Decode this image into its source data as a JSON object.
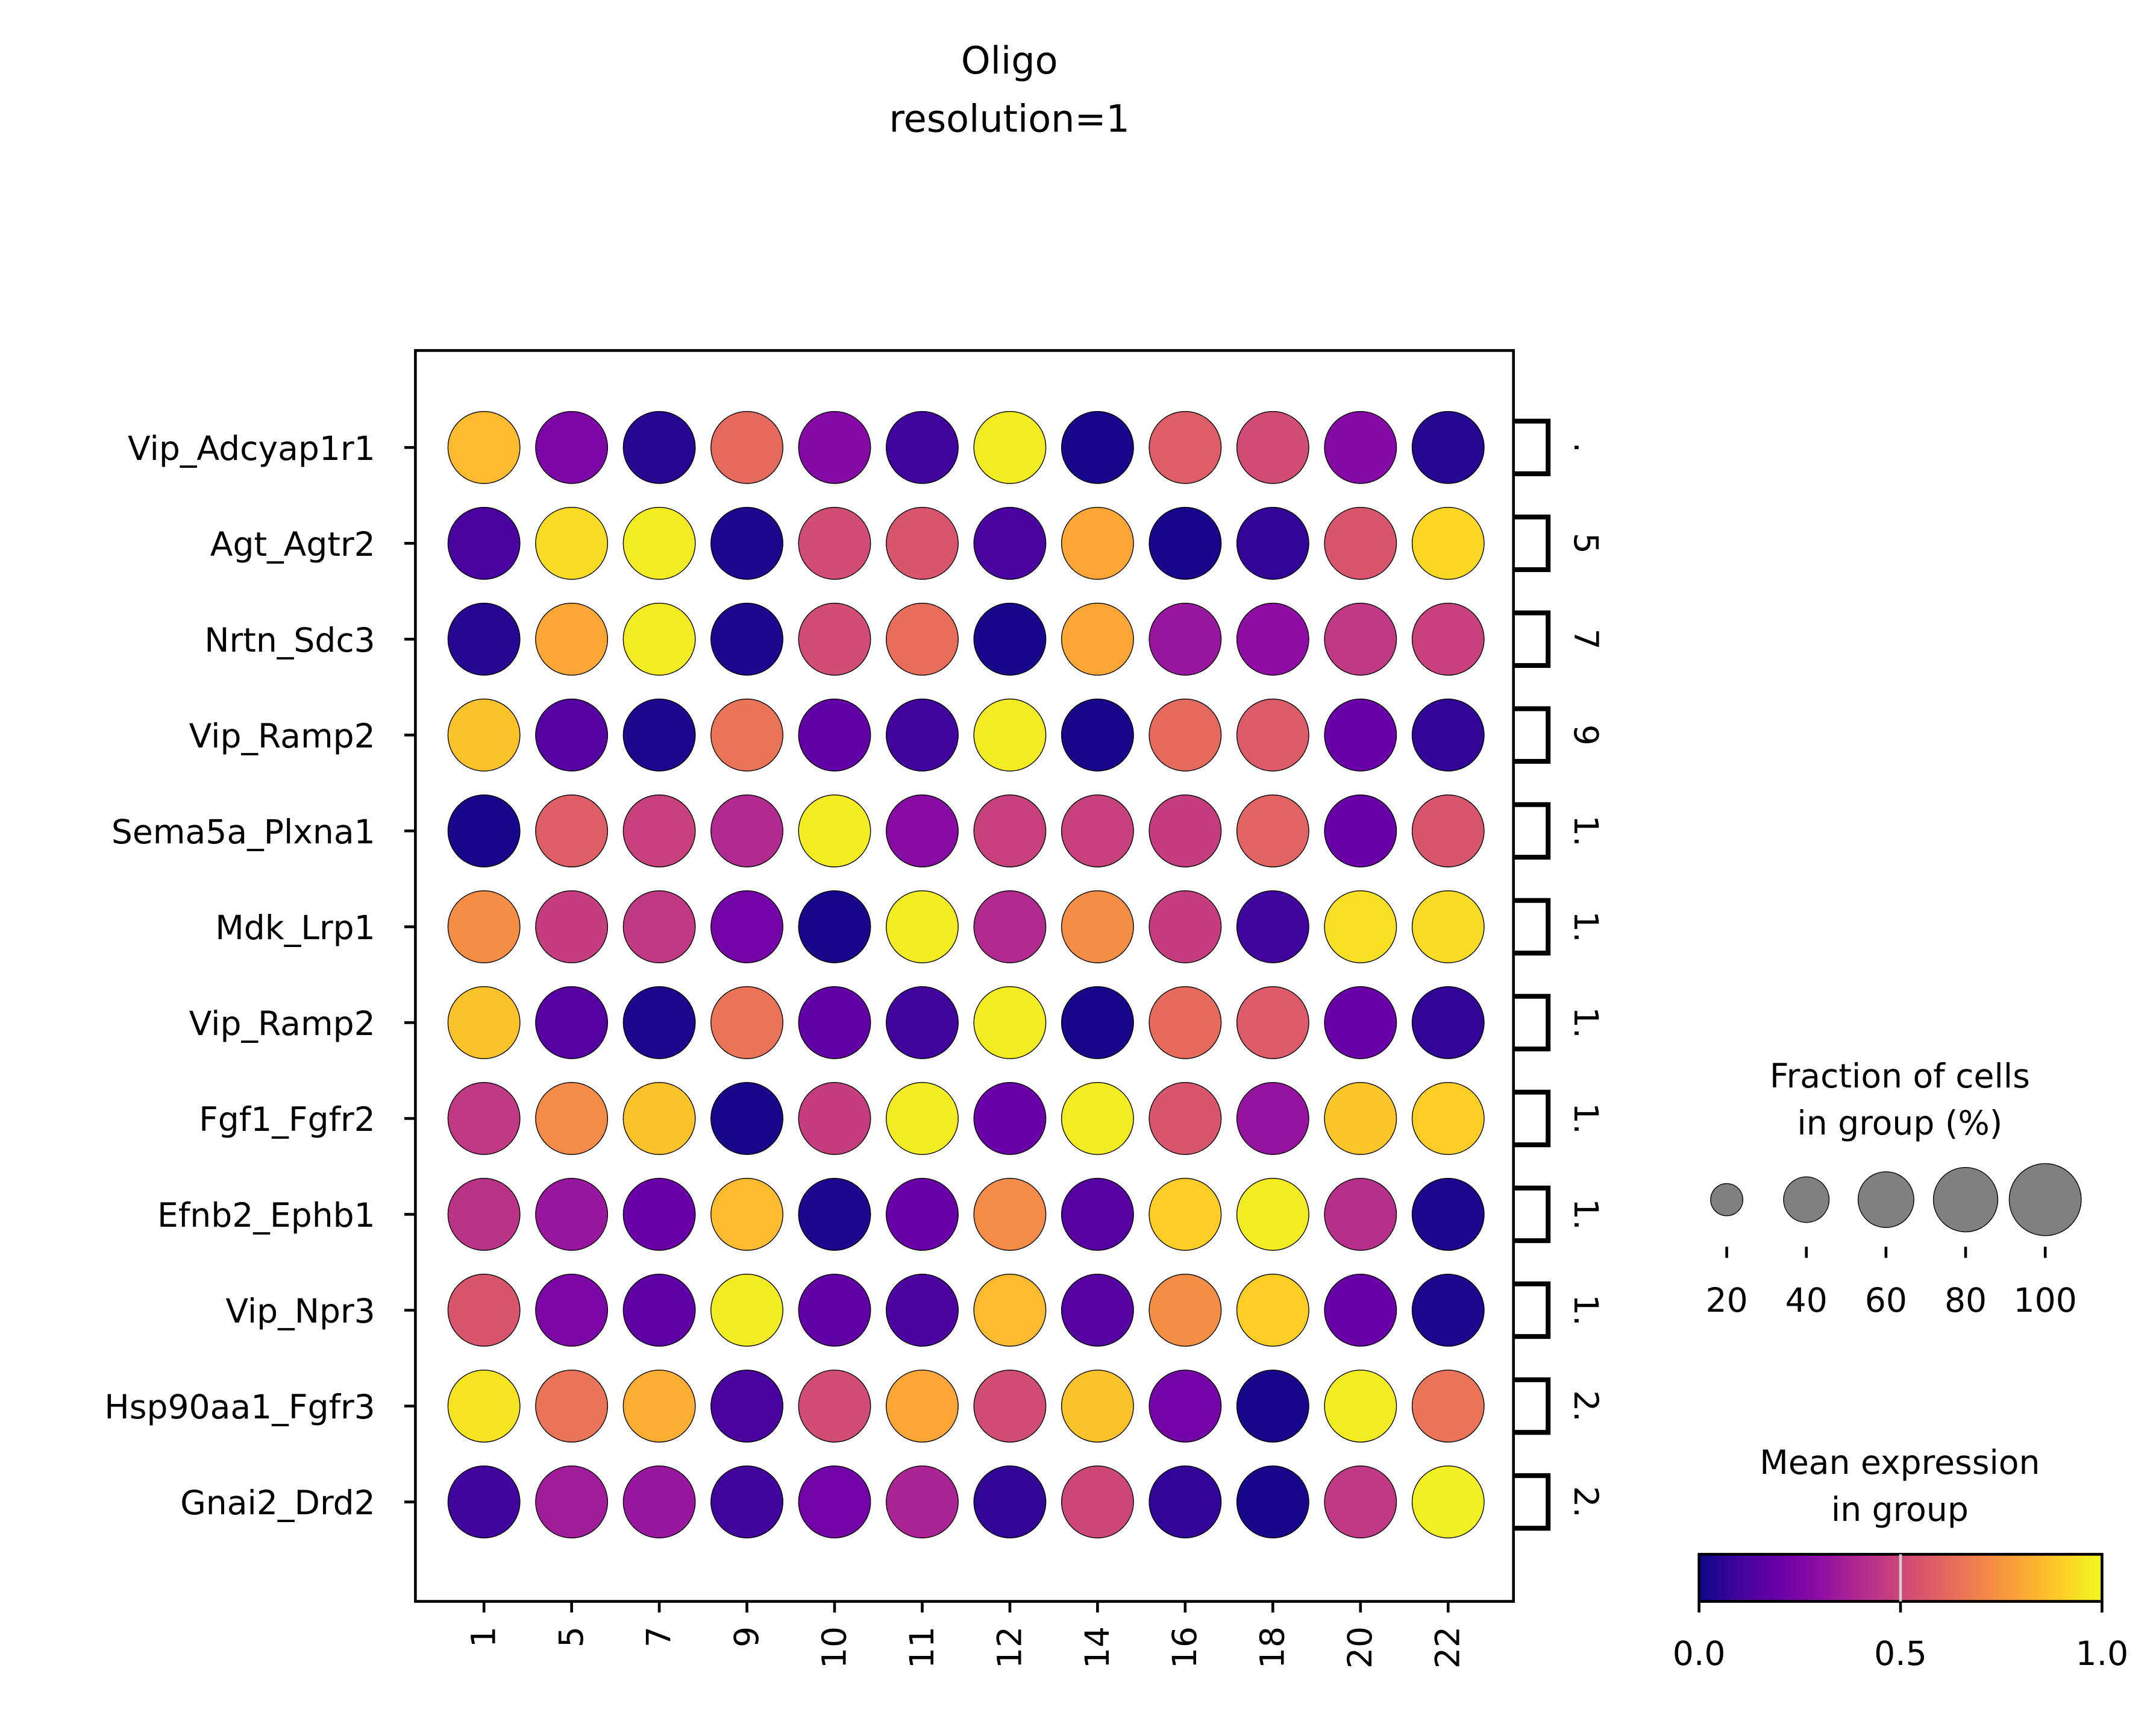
{
  "chart_data": {
    "type": "dotplot",
    "title": "Oligo",
    "subtitle": "resolution=1",
    "categories": [
      "1",
      "5",
      "7",
      "9",
      "10",
      "11",
      "12",
      "14",
      "16",
      "18",
      "20",
      "22"
    ],
    "rows": [
      "Vip_Adcyap1r1",
      "Agt_Agtr2",
      "Nrtn_Sdc3",
      "Vip_Ramp2",
      "Sema5a_Plxna1",
      "Mdk_Lrp1",
      "Vip_Ramp2",
      "Fgf1_Fgfr2",
      "Efnb2_Ephb1",
      "Vip_Npr3",
      "Hsp90aa1_Fgfr3",
      "Gnai2_Drd2"
    ],
    "bracket_labels": [
      ".",
      "5",
      "7",
      "9",
      "1.",
      "1.",
      "1.",
      "1.",
      "1.",
      "1.",
      "2.",
      "2."
    ],
    "mean_expression": [
      [
        0.85,
        0.25,
        0.05,
        0.62,
        0.27,
        0.1,
        0.97,
        0.02,
        0.58,
        0.52,
        0.27,
        0.05
      ],
      [
        0.12,
        0.93,
        0.97,
        0.03,
        0.52,
        0.55,
        0.12,
        0.8,
        0.02,
        0.07,
        0.55,
        0.92
      ],
      [
        0.05,
        0.8,
        0.97,
        0.03,
        0.52,
        0.63,
        0.02,
        0.8,
        0.33,
        0.3,
        0.45,
        0.48
      ],
      [
        0.87,
        0.15,
        0.03,
        0.65,
        0.18,
        0.1,
        0.97,
        0.02,
        0.62,
        0.57,
        0.2,
        0.07
      ],
      [
        0.02,
        0.58,
        0.48,
        0.4,
        0.97,
        0.28,
        0.48,
        0.48,
        0.47,
        0.6,
        0.2,
        0.55
      ],
      [
        0.73,
        0.47,
        0.45,
        0.23,
        0.02,
        0.97,
        0.4,
        0.73,
        0.47,
        0.1,
        0.94,
        0.93
      ],
      [
        0.87,
        0.15,
        0.03,
        0.65,
        0.18,
        0.1,
        0.97,
        0.02,
        0.62,
        0.57,
        0.2,
        0.07
      ],
      [
        0.45,
        0.72,
        0.87,
        0.02,
        0.47,
        0.97,
        0.2,
        0.97,
        0.55,
        0.32,
        0.88,
        0.9
      ],
      [
        0.43,
        0.33,
        0.2,
        0.85,
        0.03,
        0.2,
        0.72,
        0.15,
        0.9,
        0.97,
        0.42,
        0.03
      ],
      [
        0.55,
        0.25,
        0.17,
        0.97,
        0.18,
        0.13,
        0.85,
        0.15,
        0.73,
        0.9,
        0.2,
        0.03
      ],
      [
        0.95,
        0.65,
        0.82,
        0.12,
        0.52,
        0.8,
        0.52,
        0.87,
        0.23,
        0.02,
        0.97,
        0.65
      ],
      [
        0.1,
        0.35,
        0.33,
        0.1,
        0.22,
        0.38,
        0.07,
        0.5,
        0.07,
        0.02,
        0.45,
        0.98
      ]
    ],
    "fraction_of_cells": [
      [
        100,
        100,
        100,
        100,
        100,
        100,
        100,
        100,
        100,
        100,
        100,
        100
      ],
      [
        100,
        100,
        100,
        100,
        100,
        100,
        100,
        100,
        100,
        100,
        100,
        100
      ],
      [
        100,
        100,
        100,
        100,
        100,
        100,
        100,
        100,
        100,
        100,
        100,
        100
      ],
      [
        100,
        100,
        100,
        100,
        100,
        100,
        100,
        100,
        100,
        100,
        100,
        100
      ],
      [
        100,
        100,
        100,
        100,
        100,
        100,
        100,
        100,
        100,
        100,
        100,
        100
      ],
      [
        100,
        100,
        100,
        100,
        100,
        100,
        100,
        100,
        100,
        100,
        100,
        100
      ],
      [
        100,
        100,
        100,
        100,
        100,
        100,
        100,
        100,
        100,
        100,
        100,
        100
      ],
      [
        100,
        100,
        100,
        100,
        100,
        100,
        100,
        100,
        100,
        100,
        100,
        100
      ],
      [
        100,
        100,
        100,
        100,
        100,
        100,
        100,
        100,
        100,
        100,
        100,
        100
      ],
      [
        100,
        100,
        100,
        100,
        100,
        100,
        100,
        100,
        100,
        100,
        100,
        100
      ],
      [
        100,
        100,
        100,
        100,
        100,
        100,
        100,
        100,
        100,
        100,
        100,
        100
      ],
      [
        100,
        100,
        100,
        100,
        100,
        100,
        100,
        100,
        100,
        100,
        100,
        100
      ]
    ],
    "size_legend": {
      "title_line1": "Fraction of cells",
      "title_line2": "in group (%)",
      "values": [
        20,
        40,
        60,
        80,
        100
      ],
      "labels": [
        "20",
        "40",
        "60",
        "80",
        "100"
      ],
      "dot_color": "#808080"
    },
    "color_legend": {
      "title_line1": "Mean expression",
      "title_line2": "in group",
      "colormap": "plasma",
      "range": [
        0.0,
        1.0
      ],
      "ticks": [
        "0.0",
        "0.5",
        "1.0"
      ]
    },
    "legend_placement": "right",
    "grid": false
  }
}
